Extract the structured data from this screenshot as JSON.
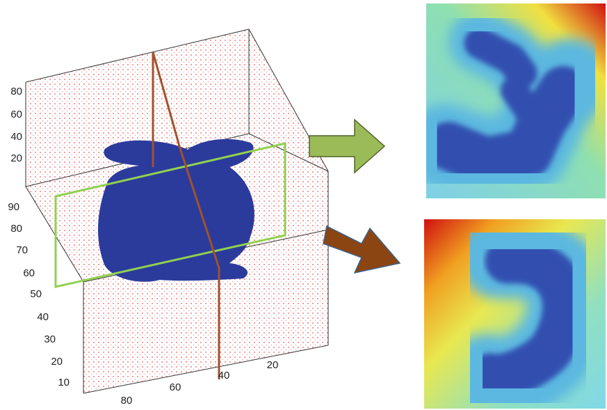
{
  "axes": {
    "z_ticks": [
      "80",
      "60",
      "40",
      "20"
    ],
    "y_ticks": [
      "90",
      "80",
      "70",
      "60",
      "50",
      "40",
      "30",
      "20",
      "10"
    ],
    "x_ticks": [
      "80",
      "60",
      "40",
      "20"
    ]
  }
}
